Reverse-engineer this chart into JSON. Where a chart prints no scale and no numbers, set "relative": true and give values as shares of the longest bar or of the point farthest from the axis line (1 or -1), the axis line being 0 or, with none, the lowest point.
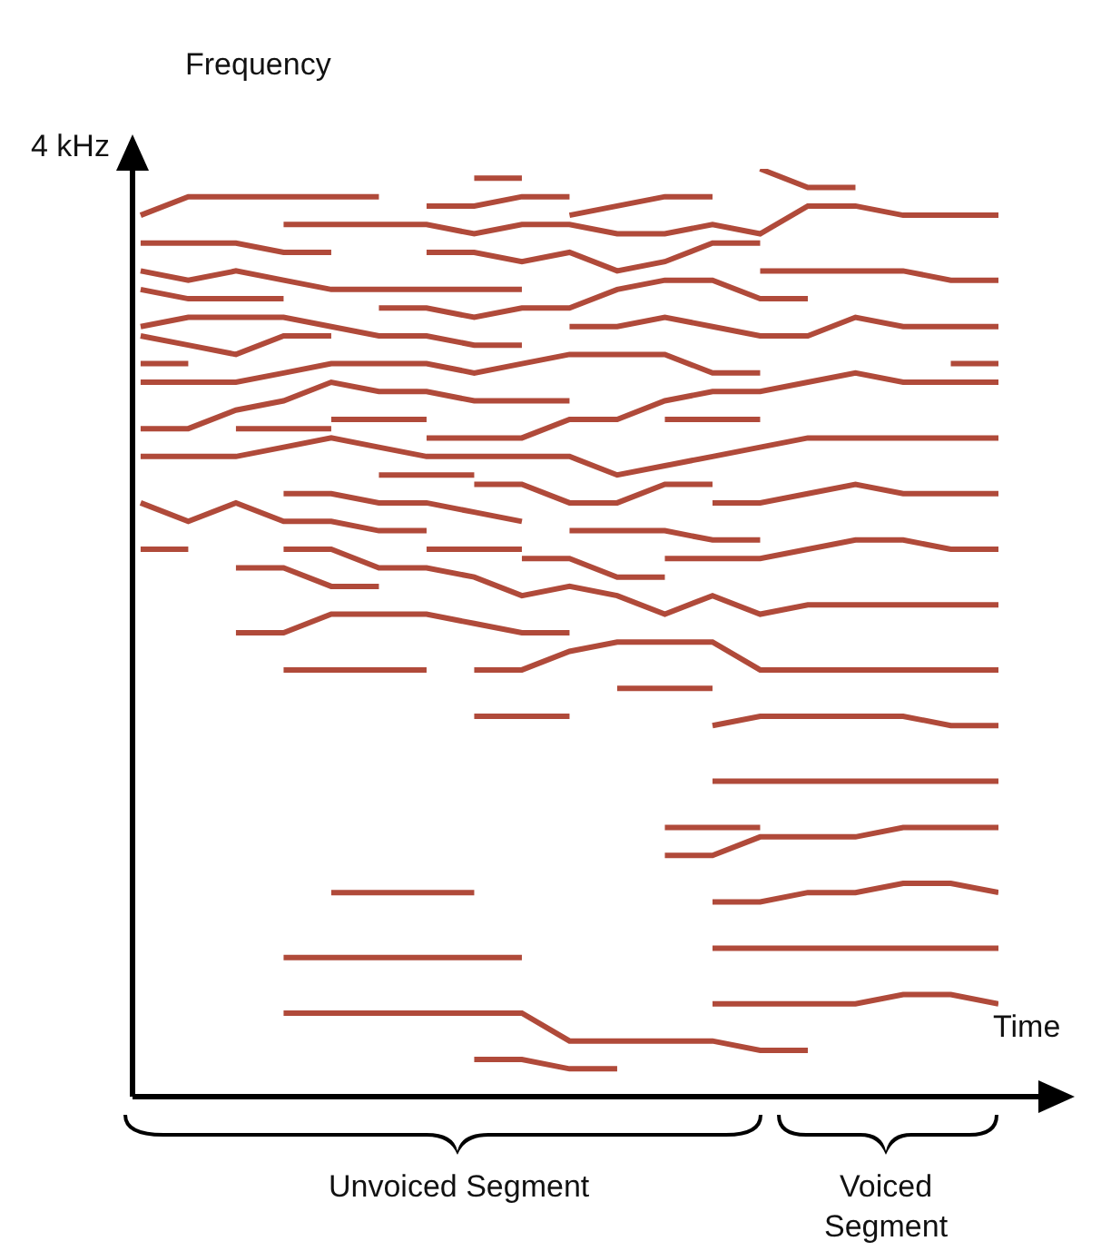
{
  "chart_data": {
    "type": "line",
    "relative": true,
    "xlabel": "Time",
    "ylabel": "Frequency",
    "annotations": [
      "4 kHz",
      "Unvoiced Segment",
      "Voiced Segment"
    ],
    "categories": [
      null,
      null,
      null,
      null,
      null,
      null,
      null,
      null,
      null,
      null,
      null,
      null,
      null,
      null,
      null,
      null,
      null,
      null,
      null
    ],
    "series": [
      {
        "color": "#b04a3a",
        "values": [
          0.95,
          0.97,
          0.97,
          0.97,
          0.97,
          0.97,
          null,
          null,
          null,
          null,
          null,
          null,
          null,
          null,
          null,
          null,
          null,
          null,
          null
        ]
      },
      {
        "color": "#b04a3a",
        "values": [
          null,
          null,
          null,
          null,
          null,
          null,
          null,
          0.99,
          0.99,
          null,
          null,
          null,
          null,
          null,
          null,
          null,
          null,
          null,
          null
        ]
      },
      {
        "color": "#b04a3a",
        "values": [
          null,
          null,
          null,
          null,
          null,
          null,
          0.96,
          0.96,
          0.97,
          0.97,
          null,
          null,
          null,
          null,
          null,
          null,
          null,
          null,
          null
        ]
      },
      {
        "color": "#b04a3a",
        "values": [
          null,
          null,
          null,
          null,
          null,
          null,
          null,
          null,
          null,
          0.95,
          0.96,
          0.97,
          0.97,
          null,
          null,
          null,
          null,
          null,
          null
        ]
      },
      {
        "color": "#b04a3a",
        "values": [
          null,
          null,
          null,
          null,
          null,
          null,
          null,
          null,
          null,
          null,
          null,
          null,
          null,
          1.0,
          0.98,
          0.98,
          null,
          null,
          null
        ]
      },
      {
        "color": "#b04a3a",
        "values": [
          null,
          null,
          null,
          0.94,
          0.94,
          0.94,
          0.94,
          0.93,
          0.94,
          0.94,
          0.93,
          0.93,
          0.94,
          0.93,
          0.96,
          0.96,
          0.95,
          0.95,
          0.95
        ]
      },
      {
        "color": "#b04a3a",
        "values": [
          0.92,
          0.92,
          0.92,
          0.91,
          0.91,
          null,
          null,
          null,
          null,
          null,
          null,
          null,
          null,
          null,
          null,
          null,
          null,
          null,
          null
        ]
      },
      {
        "color": "#b04a3a",
        "values": [
          null,
          null,
          null,
          null,
          null,
          null,
          0.91,
          0.91,
          0.9,
          0.91,
          0.89,
          0.9,
          0.92,
          0.92,
          null,
          null,
          null,
          null,
          null
        ]
      },
      {
        "color": "#b04a3a",
        "values": [
          0.89,
          0.88,
          0.89,
          0.88,
          0.87,
          0.87,
          0.87,
          0.87,
          0.87,
          null,
          null,
          null,
          null,
          null,
          null,
          null,
          null,
          null,
          null
        ]
      },
      {
        "color": "#b04a3a",
        "values": [
          null,
          null,
          null,
          null,
          null,
          null,
          null,
          null,
          null,
          null,
          null,
          null,
          null,
          0.89,
          0.89,
          0.89,
          0.89,
          0.88,
          0.88
        ]
      },
      {
        "color": "#b04a3a",
        "values": [
          0.87,
          0.86,
          0.86,
          0.86,
          null,
          null,
          null,
          null,
          null,
          null,
          null,
          null,
          null,
          null,
          null,
          null,
          null,
          null,
          null
        ]
      },
      {
        "color": "#b04a3a",
        "values": [
          null,
          null,
          null,
          null,
          null,
          0.85,
          0.85,
          0.84,
          0.85,
          0.85,
          0.87,
          0.88,
          0.88,
          0.86,
          0.86,
          null,
          null,
          null,
          null
        ]
      },
      {
        "color": "#b04a3a",
        "values": [
          0.83,
          0.84,
          0.84,
          0.84,
          0.83,
          0.82,
          0.82,
          0.81,
          0.81,
          null,
          null,
          null,
          null,
          null,
          null,
          null,
          null,
          null,
          null
        ]
      },
      {
        "color": "#b04a3a",
        "values": [
          null,
          null,
          null,
          null,
          null,
          null,
          null,
          null,
          null,
          0.83,
          0.83,
          0.84,
          0.83,
          0.82,
          0.82,
          0.84,
          0.83,
          0.83,
          0.83
        ]
      },
      {
        "color": "#b04a3a",
        "values": [
          0.82,
          0.81,
          0.8,
          0.82,
          0.82,
          null,
          null,
          null,
          null,
          null,
          null,
          null,
          null,
          null,
          null,
          null,
          null,
          null,
          null
        ]
      },
      {
        "color": "#b04a3a",
        "values": [
          0.79,
          0.79,
          null,
          null,
          null,
          null,
          null,
          null,
          null,
          null,
          null,
          null,
          null,
          null,
          null,
          null,
          null,
          null,
          null
        ]
      },
      {
        "color": "#b04a3a",
        "values": [
          0.77,
          0.77,
          0.77,
          0.78,
          0.79,
          0.79,
          0.79,
          0.78,
          0.79,
          0.8,
          0.8,
          0.8,
          0.78,
          0.78,
          null,
          null,
          null,
          null,
          null
        ]
      },
      {
        "color": "#b04a3a",
        "values": [
          null,
          null,
          null,
          null,
          null,
          null,
          null,
          null,
          null,
          null,
          null,
          null,
          null,
          null,
          null,
          null,
          null,
          0.79,
          0.79
        ]
      },
      {
        "color": "#b04a3a",
        "values": [
          0.72,
          0.72,
          0.74,
          0.75,
          0.77,
          0.76,
          0.76,
          0.75,
          0.75,
          0.75,
          null,
          null,
          null,
          null,
          null,
          null,
          null,
          null,
          null
        ]
      },
      {
        "color": "#b04a3a",
        "values": [
          null,
          null,
          null,
          null,
          null,
          null,
          0.71,
          0.71,
          0.71,
          0.73,
          0.73,
          0.75,
          0.76,
          0.76,
          0.77,
          0.78,
          0.77,
          0.77,
          0.77
        ]
      },
      {
        "color": "#b04a3a",
        "values": [
          null,
          null,
          null,
          null,
          0.73,
          0.73,
          0.73,
          null,
          null,
          null,
          null,
          null,
          null,
          null,
          null,
          null,
          null,
          null,
          null
        ]
      },
      {
        "color": "#b04a3a",
        "values": [
          null,
          null,
          0.72,
          0.72,
          0.72,
          null,
          null,
          null,
          null,
          null,
          null,
          null,
          null,
          null,
          null,
          null,
          null,
          null,
          null
        ]
      },
      {
        "color": "#b04a3a",
        "values": [
          null,
          null,
          null,
          null,
          null,
          null,
          null,
          null,
          null,
          null,
          null,
          0.73,
          0.73,
          0.73,
          null,
          null,
          null,
          null,
          null
        ]
      },
      {
        "color": "#b04a3a",
        "values": [
          0.69,
          0.69,
          0.69,
          0.7,
          0.71,
          0.7,
          0.69,
          0.69,
          0.69,
          0.69,
          0.67,
          0.68,
          0.69,
          0.7,
          0.71,
          0.71,
          0.71,
          0.71,
          0.71
        ]
      },
      {
        "color": "#b04a3a",
        "values": [
          null,
          null,
          null,
          null,
          null,
          0.67,
          0.67,
          0.67,
          null,
          null,
          null,
          null,
          null,
          null,
          null,
          null,
          null,
          null,
          null
        ]
      },
      {
        "color": "#b04a3a",
        "values": [
          null,
          null,
          null,
          null,
          null,
          null,
          null,
          0.66,
          0.66,
          0.64,
          0.64,
          0.66,
          0.66,
          null,
          null,
          null,
          null,
          null,
          null
        ]
      },
      {
        "color": "#b04a3a",
        "values": [
          null,
          null,
          null,
          null,
          null,
          null,
          null,
          null,
          null,
          null,
          null,
          null,
          0.64,
          0.64,
          0.65,
          0.66,
          0.65,
          0.65,
          0.65
        ]
      },
      {
        "color": "#b04a3a",
        "values": [
          null,
          null,
          null,
          0.65,
          0.65,
          0.64,
          0.64,
          0.63,
          0.62,
          null,
          null,
          null,
          null,
          null,
          null,
          null,
          null,
          null,
          null
        ]
      },
      {
        "color": "#b04a3a",
        "values": [
          0.64,
          0.62,
          0.64,
          0.62,
          0.62,
          0.61,
          0.61,
          null,
          null,
          null,
          null,
          null,
          null,
          null,
          null,
          null,
          null,
          null,
          null
        ]
      },
      {
        "color": "#b04a3a",
        "values": [
          null,
          null,
          null,
          null,
          null,
          null,
          0.59,
          0.59,
          0.59,
          null,
          null,
          null,
          null,
          null,
          null,
          null,
          null,
          null,
          null
        ]
      },
      {
        "color": "#b04a3a",
        "values": [
          0.59,
          0.59,
          null,
          null,
          null,
          null,
          null,
          null,
          null,
          null,
          null,
          null,
          null,
          null,
          null,
          null,
          null,
          null,
          null
        ]
      },
      {
        "color": "#b04a3a",
        "values": [
          null,
          null,
          null,
          0.59,
          0.59,
          0.57,
          0.57,
          0.56,
          0.54,
          0.55,
          0.54,
          0.52,
          0.54,
          0.52,
          0.53,
          0.53,
          0.53,
          0.53,
          0.53
        ]
      },
      {
        "color": "#b04a3a",
        "values": [
          null,
          null,
          null,
          null,
          null,
          null,
          null,
          null,
          0.58,
          0.58,
          0.56,
          0.56,
          null,
          null,
          null,
          null,
          null,
          null,
          null
        ]
      },
      {
        "color": "#b04a3a",
        "values": [
          null,
          null,
          null,
          null,
          null,
          null,
          null,
          null,
          null,
          0.61,
          0.61,
          0.61,
          0.6,
          0.6,
          null,
          null,
          null,
          null,
          null
        ]
      },
      {
        "color": "#b04a3a",
        "values": [
          null,
          null,
          null,
          null,
          null,
          null,
          null,
          null,
          null,
          null,
          null,
          0.58,
          0.58,
          0.58,
          0.59,
          0.6,
          0.6,
          0.59,
          0.59
        ]
      },
      {
        "color": "#b04a3a",
        "values": [
          null,
          null,
          0.57,
          0.57,
          0.55,
          0.55,
          null,
          null,
          null,
          null,
          null,
          null,
          null,
          null,
          null,
          null,
          null,
          null,
          null
        ]
      },
      {
        "color": "#b04a3a",
        "values": [
          null,
          null,
          0.5,
          0.5,
          0.52,
          0.52,
          0.52,
          0.51,
          0.5,
          0.5,
          null,
          null,
          null,
          null,
          null,
          null,
          null,
          null,
          null
        ]
      },
      {
        "color": "#b04a3a",
        "values": [
          null,
          null,
          null,
          null,
          null,
          null,
          null,
          0.46,
          0.46,
          0.48,
          0.49,
          0.49,
          0.49,
          0.46,
          0.46,
          0.46,
          0.46,
          0.46,
          0.46
        ]
      },
      {
        "color": "#b04a3a",
        "values": [
          null,
          null,
          null,
          0.46,
          0.46,
          0.46,
          0.46,
          null,
          null,
          null,
          null,
          null,
          null,
          null,
          null,
          null,
          null,
          null,
          null
        ]
      },
      {
        "color": "#b04a3a",
        "values": [
          null,
          null,
          null,
          null,
          null,
          null,
          null,
          null,
          null,
          null,
          0.44,
          0.44,
          0.44,
          null,
          null,
          null,
          null,
          null,
          null
        ]
      },
      {
        "color": "#b04a3a",
        "values": [
          null,
          null,
          null,
          null,
          null,
          null,
          null,
          0.41,
          0.41,
          0.41,
          null,
          null,
          null,
          null,
          null,
          null,
          null,
          null,
          null
        ]
      },
      {
        "color": "#b04a3a",
        "values": [
          null,
          null,
          null,
          null,
          null,
          null,
          null,
          null,
          null,
          null,
          null,
          null,
          0.4,
          0.41,
          0.41,
          0.41,
          0.41,
          0.4,
          0.4
        ]
      },
      {
        "color": "#b04a3a",
        "values": [
          null,
          null,
          null,
          null,
          null,
          null,
          null,
          null,
          null,
          null,
          null,
          null,
          0.34,
          0.34,
          0.34,
          0.34,
          0.34,
          0.34,
          0.34
        ]
      },
      {
        "color": "#b04a3a",
        "values": [
          null,
          null,
          null,
          null,
          null,
          null,
          null,
          null,
          null,
          null,
          null,
          0.29,
          0.29,
          0.29,
          null,
          null,
          null,
          null,
          null
        ]
      },
      {
        "color": "#b04a3a",
        "values": [
          null,
          null,
          null,
          null,
          null,
          null,
          null,
          null,
          null,
          null,
          null,
          0.26,
          0.26,
          0.28,
          0.28,
          0.28,
          0.29,
          0.29,
          0.29
        ]
      },
      {
        "color": "#b04a3a",
        "values": [
          null,
          null,
          null,
          null,
          null,
          null,
          null,
          null,
          null,
          null,
          null,
          null,
          0.21,
          0.21,
          0.22,
          0.22,
          0.23,
          0.23,
          0.22
        ]
      },
      {
        "color": "#b04a3a",
        "values": [
          null,
          null,
          null,
          null,
          0.22,
          0.22,
          0.22,
          0.22,
          null,
          null,
          null,
          null,
          null,
          null,
          null,
          null,
          null,
          null,
          null
        ]
      },
      {
        "color": "#b04a3a",
        "values": [
          null,
          null,
          null,
          0.15,
          0.15,
          0.15,
          0.15,
          0.15,
          0.15,
          null,
          null,
          null,
          null,
          null,
          null,
          null,
          null,
          null,
          null
        ]
      },
      {
        "color": "#b04a3a",
        "values": [
          null,
          null,
          null,
          null,
          null,
          null,
          null,
          null,
          null,
          null,
          null,
          null,
          0.16,
          0.16,
          0.16,
          0.16,
          0.16,
          0.16,
          0.16
        ]
      },
      {
        "color": "#b04a3a",
        "values": [
          null,
          null,
          null,
          0.09,
          0.09,
          0.09,
          0.09,
          0.09,
          0.09,
          0.06,
          0.06,
          0.06,
          0.06,
          0.05,
          0.05,
          null,
          null,
          null,
          null
        ]
      },
      {
        "color": "#b04a3a",
        "values": [
          null,
          null,
          null,
          null,
          null,
          null,
          null,
          null,
          null,
          null,
          null,
          null,
          0.1,
          0.1,
          0.1,
          0.1,
          0.11,
          0.11,
          0.1
        ]
      },
      {
        "color": "#b04a3a",
        "values": [
          null,
          null,
          null,
          null,
          null,
          null,
          null,
          0.04,
          0.04,
          0.03,
          0.03,
          null,
          null,
          null,
          null,
          null,
          null,
          null,
          null
        ]
      }
    ]
  }
}
